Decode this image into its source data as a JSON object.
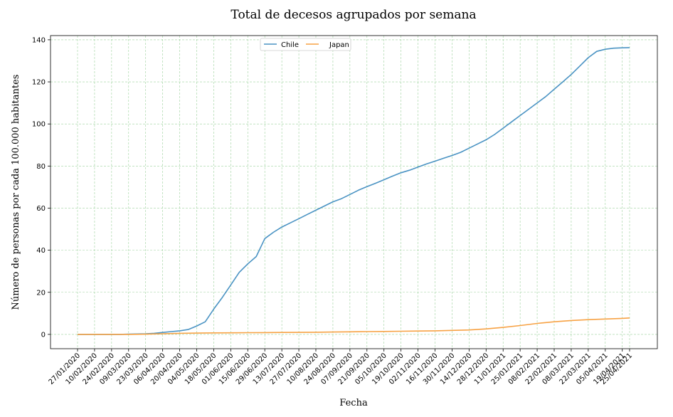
{
  "chart_data": {
    "type": "line",
    "title": "Total de decesos agrupados por semana",
    "xlabel": "Fecha",
    "ylabel": "Número de personas por cada 100.000 habitantes",
    "ylim": [
      -6.8,
      142
    ],
    "yticks": [
      0,
      20,
      40,
      60,
      80,
      100,
      120,
      140
    ],
    "grid": true,
    "legend_position": "top-center",
    "x_tick_labels": [
      "27/01/2020",
      "10/02/2020",
      "24/02/2020",
      "09/03/2020",
      "23/03/2020",
      "06/04/2020",
      "20/04/2020",
      "04/05/2020",
      "18/05/2020",
      "01/06/2020",
      "15/06/2020",
      "29/06/2020",
      "13/07/2020",
      "27/07/2020",
      "10/08/2020",
      "24/08/2020",
      "07/09/2020",
      "21/09/2020",
      "05/10/2020",
      "19/10/2020",
      "02/11/2020",
      "16/11/2020",
      "30/11/2020",
      "14/12/2020",
      "28/12/2020",
      "11/01/2021",
      "25/01/2021",
      "08/02/2021",
      "22/02/2021",
      "08/03/2021",
      "22/03/2021",
      "05/04/2021",
      "19/04/2021",
      "25/04/2021"
    ],
    "x_tick_weeks": [
      0,
      2,
      4,
      6,
      8,
      10,
      12,
      14,
      16,
      18,
      20,
      22,
      24,
      26,
      28,
      30,
      32,
      34,
      36,
      38,
      40,
      42,
      44,
      46,
      48,
      50,
      52,
      54,
      56,
      58,
      60,
      62,
      64,
      64.86
    ],
    "series": [
      {
        "name": "Chile",
        "color": "#4a93c3",
        "x": [
          0,
          1,
          2,
          3,
          4,
          5,
          6,
          7,
          8,
          9,
          10,
          11,
          12,
          13,
          14,
          15,
          16,
          17,
          18,
          19,
          20,
          21,
          22,
          23,
          24,
          25,
          26,
          27,
          28,
          29,
          30,
          31,
          32,
          33,
          34,
          35,
          36,
          37,
          38,
          39,
          40,
          41,
          42,
          43,
          44,
          45,
          46,
          47,
          48,
          49,
          50,
          51,
          52,
          53,
          54,
          55,
          56,
          57,
          58,
          59,
          60,
          61,
          62,
          63,
          64,
          64.86
        ],
        "values": [
          0,
          0,
          0,
          0,
          0,
          0,
          0.1,
          0.2,
          0.3,
          0.5,
          0.9,
          1.3,
          1.7,
          2.3,
          4,
          6,
          12,
          17.5,
          23.5,
          29.5,
          33.5,
          37,
          45.5,
          48.5,
          51,
          53,
          55,
          57,
          59,
          61,
          63,
          64.5,
          66.5,
          68.5,
          70.2,
          71.8,
          73.5,
          75.2,
          76.8,
          78,
          79.5,
          81,
          82.3,
          83.7,
          85,
          86.5,
          88.5,
          90.5,
          92.5,
          95,
          98,
          101,
          104,
          107,
          110,
          113,
          116.5,
          120,
          123.5,
          127.5,
          131.5,
          134.5,
          135.5,
          136,
          136.2,
          136.3
        ]
      },
      {
        "name": "Japan",
        "color": "#f7a244",
        "x": [
          0,
          2,
          4,
          6,
          8,
          10,
          12,
          14,
          16,
          18,
          20,
          22,
          24,
          26,
          28,
          30,
          32,
          34,
          36,
          38,
          40,
          42,
          44,
          46,
          48,
          50,
          52,
          54,
          56,
          58,
          60,
          62,
          64,
          64.86
        ],
        "values": [
          0,
          0,
          0,
          0,
          0.1,
          0.3,
          0.5,
          0.6,
          0.7,
          0.75,
          0.8,
          0.85,
          0.9,
          0.95,
          1.0,
          1.1,
          1.2,
          1.3,
          1.4,
          1.5,
          1.6,
          1.7,
          1.9,
          2.1,
          2.6,
          3.3,
          4.2,
          5.2,
          6.0,
          6.6,
          7.0,
          7.3,
          7.6,
          7.8
        ]
      }
    ]
  }
}
